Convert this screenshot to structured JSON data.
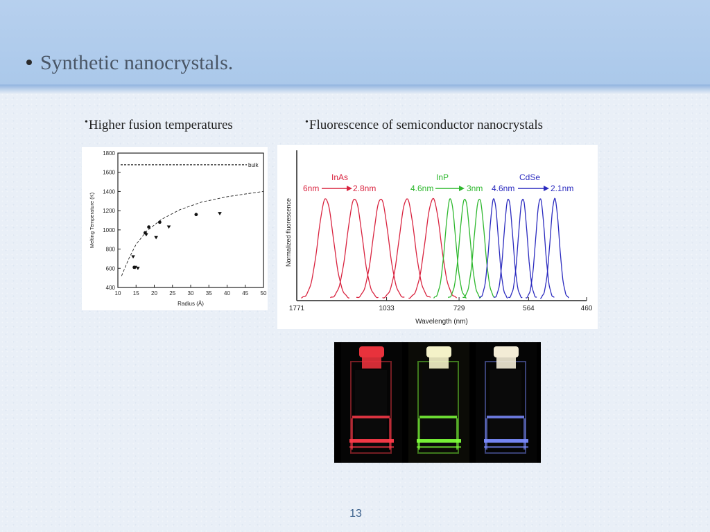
{
  "slide": {
    "title": "Synthetic nanocrystals.",
    "left_heading": "Higher fusion temperatures",
    "right_heading": "Fluorescence of semiconductor nanocrystals",
    "page_number": "13"
  },
  "chart_data": [
    {
      "type": "scatter",
      "title": "",
      "xlabel": "Radius (Å)",
      "ylabel": "Melting Temperature (K)",
      "xlim": [
        10,
        50
      ],
      "ylim": [
        400,
        1800
      ],
      "x_ticks": [
        "10",
        "15",
        "20",
        "25",
        "30",
        "35",
        "40",
        "45",
        "50"
      ],
      "y_ticks": [
        "400",
        "600",
        "800",
        "1000",
        "1200",
        "1400",
        "1600",
        "1800"
      ],
      "annotation": "bulk",
      "bulk_value": 1678,
      "series": [
        {
          "marker": "circle",
          "points": [
            [
              14.5,
              610
            ],
            [
              17.5,
              970
            ],
            [
              18.5,
              1030
            ],
            [
              21.5,
              1080
            ],
            [
              31.5,
              1160
            ]
          ]
        },
        {
          "marker": "triangle",
          "points": [
            [
              14.2,
              720
            ],
            [
              14.8,
              610
            ],
            [
              15.5,
              600
            ],
            [
              17.8,
              950
            ],
            [
              20.5,
              920
            ],
            [
              24,
              1030
            ],
            [
              38,
              1170
            ]
          ]
        }
      ],
      "fit_curve_description_points": [
        [
          11,
          520
        ],
        [
          13,
          700
        ],
        [
          15,
          850
        ],
        [
          18,
          990
        ],
        [
          22,
          1110
        ],
        [
          27,
          1210
        ],
        [
          33,
          1290
        ],
        [
          40,
          1345
        ],
        [
          47,
          1385
        ],
        [
          50,
          1400
        ]
      ]
    },
    {
      "type": "line",
      "title": "",
      "xlabel": "Wavelength (nm)",
      "ylabel": "Normalized fluorescence",
      "x_ticks": [
        "1771",
        "1033",
        "729",
        "564",
        "460"
      ],
      "labels": {
        "inas": {
          "name": "InAs",
          "from": "6nm",
          "to": "2.8nm"
        },
        "inp": {
          "name": "InP",
          "from": "4.6nm",
          "to": "3nm"
        },
        "cdse": {
          "name": "CdSe",
          "from": "4.6nm",
          "to": "2.1nm"
        }
      },
      "series": [
        {
          "group": "InAs",
          "color": "#d9233f",
          "peaks_axis_fraction": [
            0.1,
            0.2,
            0.29,
            0.38,
            0.47
          ]
        },
        {
          "group": "InP",
          "color": "#2eb82e",
          "peaks_axis_fraction": [
            0.53,
            0.58,
            0.63
          ]
        },
        {
          "group": "CdSe",
          "color": "#2b2bbf",
          "peaks_axis_fraction": [
            0.68,
            0.73,
            0.78,
            0.84,
            0.89
          ]
        }
      ]
    }
  ],
  "photo": {
    "vials": [
      {
        "cap": "#e8323c",
        "glow": "#ff3b4a"
      },
      {
        "cap": "#f4f2c8",
        "glow": "#7dff3a"
      },
      {
        "cap": "#f3ecd6",
        "glow": "#7b8cff"
      }
    ]
  }
}
